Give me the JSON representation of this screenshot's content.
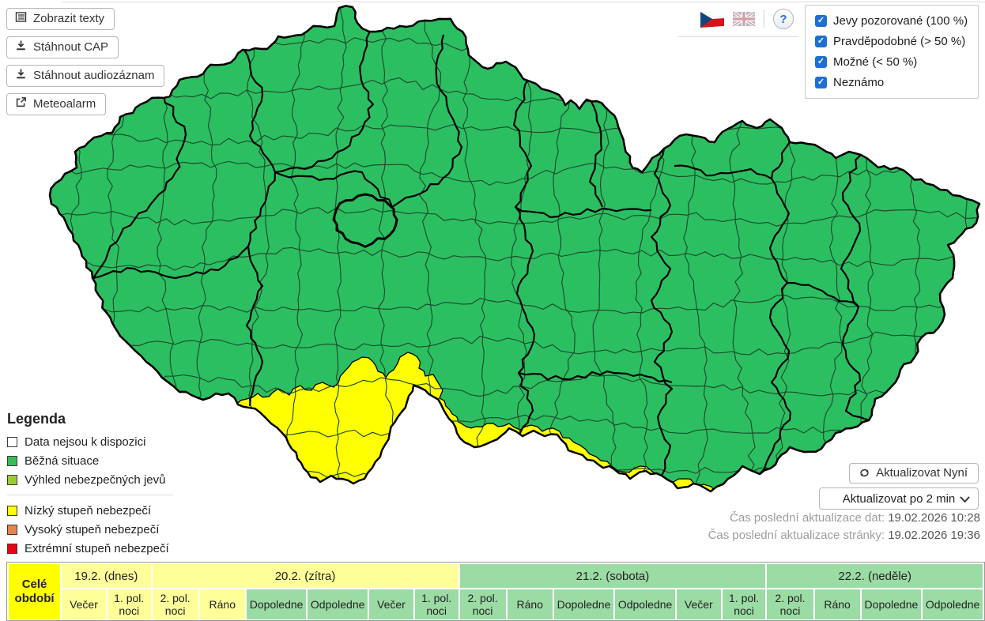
{
  "toolbar": {
    "buttons": [
      {
        "name": "zobrazit-texty-button",
        "label": "Zobrazit texty",
        "icon": "list-icon"
      },
      {
        "name": "stahnout-cap-button",
        "label": "Stáhnout CAP",
        "icon": "download-icon"
      },
      {
        "name": "stahnout-audiozaznam-button",
        "label": "Stáhnout audiozáznam",
        "icon": "download-icon"
      },
      {
        "name": "meteoalarm-button",
        "label": "Meteoalarm",
        "icon": "external-link-icon"
      }
    ]
  },
  "locale": {
    "flags": [
      {
        "name": "czech-flag"
      },
      {
        "name": "uk-flag"
      }
    ],
    "help": "?"
  },
  "filters": {
    "items": [
      {
        "label": "Jevy pozorované (100 %)",
        "checked": true
      },
      {
        "label": "Pravděpodobné (> 50 %)",
        "checked": true
      },
      {
        "label": "Možné (< 50 %)",
        "checked": true
      },
      {
        "label": "Neznámo",
        "checked": true
      }
    ],
    "checkbox_color": "#1e6fd2"
  },
  "legend": {
    "title": "Legenda",
    "situation_items": [
      {
        "label": "Data nejsou k dispozici",
        "color": "#ffffff"
      },
      {
        "label": "Běžná situace",
        "color": "#3bbb58"
      },
      {
        "label": "Výhled nebezpečných jevů",
        "color": "#9acd32"
      }
    ],
    "warning_items": [
      {
        "label": "Nízký stupeň nebezpečí",
        "color": "#ffff00"
      },
      {
        "label": "Vysoký stupeň nebezpečí",
        "color": "#e6854a"
      },
      {
        "label": "Extrémní stupeň nebezpečí",
        "color": "#e30613"
      }
    ]
  },
  "update": {
    "refresh_label": "Aktualizovat Nyní",
    "interval_value": "Aktualizovat po 2 min",
    "data_time_label": "Čas poslední aktualizace dat:",
    "data_time_value": "19.02.2026 10:28",
    "page_time_label": "Čas poslední aktualizace stránky:",
    "page_time_value": "19.02.2026 19:36"
  },
  "map": {
    "normal_color": "#2cbf61",
    "warning_color": "#ffff00",
    "border_color": "#000000",
    "district_border_color": "#1c4a2b"
  },
  "timeline": {
    "full_period_label": "Celé období",
    "level_colors": {
      "low": "#ffff99",
      "none": "#9bdba4",
      "full": "#ffff00"
    },
    "days": [
      {
        "label": "19.2. (dnes)",
        "level": "low",
        "periods": [
          {
            "label": "Večer",
            "level": "low"
          },
          {
            "label": "1. pol. noci",
            "level": "low"
          }
        ]
      },
      {
        "label": "20.2. (zítra)",
        "level": "low",
        "periods": [
          {
            "label": "2. pol. noci",
            "level": "low"
          },
          {
            "label": "Ráno",
            "level": "low"
          },
          {
            "label": "Dopoledne",
            "level": "none"
          },
          {
            "label": "Odpoledne",
            "level": "none"
          },
          {
            "label": "Večer",
            "level": "none"
          },
          {
            "label": "1. pol. noci",
            "level": "none"
          }
        ]
      },
      {
        "label": "21.2. (sobota)",
        "level": "none",
        "periods": [
          {
            "label": "2. pol. noci",
            "level": "none"
          },
          {
            "label": "Ráno",
            "level": "none"
          },
          {
            "label": "Dopoledne",
            "level": "none"
          },
          {
            "label": "Odpoledne",
            "level": "none"
          },
          {
            "label": "Večer",
            "level": "none"
          },
          {
            "label": "1. pol. noci",
            "level": "none"
          }
        ]
      },
      {
        "label": "22.2. (neděle)",
        "level": "none",
        "periods": [
          {
            "label": "2. pol. noci",
            "level": "none"
          },
          {
            "label": "Ráno",
            "level": "none"
          },
          {
            "label": "Dopoledne",
            "level": "none"
          },
          {
            "label": "Odpoledne",
            "level": "none"
          }
        ]
      }
    ]
  }
}
